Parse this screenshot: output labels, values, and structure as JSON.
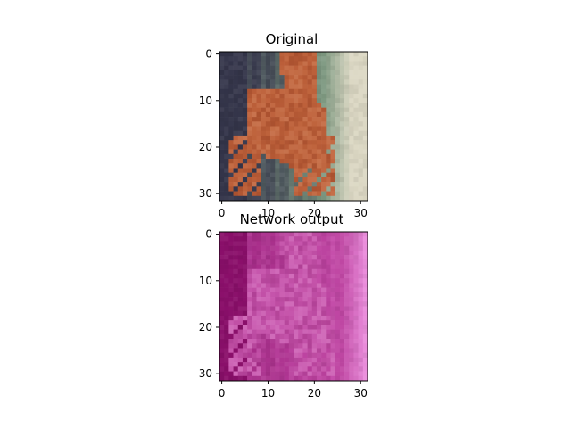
{
  "chart_data": [
    {
      "type": "image",
      "title": "Original",
      "xlim": [
        0,
        32
      ],
      "ylim": [
        0,
        32
      ],
      "xticks": [
        0,
        10,
        20,
        30
      ],
      "yticks": [
        0,
        10,
        20,
        30
      ],
      "xtick_labels": [
        "0",
        "10",
        "20",
        "30"
      ],
      "ytick_labels": [
        "0",
        "10",
        "20",
        "30"
      ],
      "grid": false,
      "palette": {
        "background_dark": "#34354a",
        "background_green": "#7f9a82",
        "background_light": "#dcd8c4",
        "subject": "#b2522f",
        "subject_highlight": "#d07a4e"
      }
    },
    {
      "type": "image",
      "title": "Network output",
      "xlim": [
        0,
        32
      ],
      "ylim": [
        0,
        32
      ],
      "xticks": [
        0,
        10,
        20,
        30
      ],
      "yticks": [
        0,
        10,
        20,
        30
      ],
      "xtick_labels": [
        "0",
        "10",
        "20",
        "30"
      ],
      "ytick_labels": [
        "0",
        "10",
        "20",
        "30"
      ],
      "grid": false,
      "palette": {
        "background_dark": "#8a0f6a",
        "background_mid": "#c047a4",
        "background_light": "#f29ae6",
        "subject": "#b83e9a",
        "subject_highlight": "#dd7cc9"
      }
    }
  ]
}
